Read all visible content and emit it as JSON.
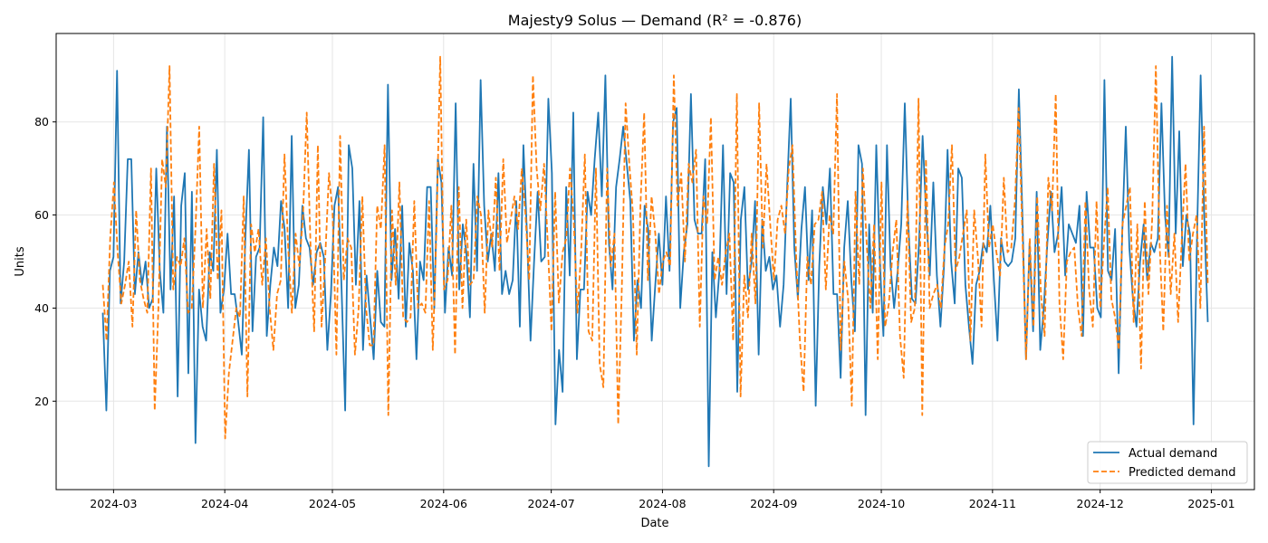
{
  "chart_data": {
    "type": "line",
    "title": "Majesty9 Solus — Demand (R² = -0.876)",
    "xlabel": "Date",
    "ylabel": "Units",
    "x_start": "2024-02-27",
    "x_end": "2024-12-31",
    "xlim": [
      "2024-02-14",
      "2025-01-13"
    ],
    "ylim": [
      1,
      99
    ],
    "x_ticks": [
      "2024-03",
      "2024-04",
      "2024-05",
      "2024-06",
      "2024-07",
      "2024-08",
      "2024-09",
      "2024-10",
      "2024-11",
      "2024-12",
      "2025-01"
    ],
    "y_ticks": [
      20,
      40,
      60,
      80
    ],
    "grid": true,
    "legend_position": "bottom-right",
    "series": [
      {
        "name": "Actual demand",
        "color": "#1f77b4",
        "style": "solid",
        "values": [
          39,
          18,
          48,
          51,
          91,
          41,
          50,
          72,
          72,
          43,
          52,
          45,
          50,
          40,
          42,
          70,
          48,
          39,
          79,
          44,
          64,
          21,
          62,
          69,
          26,
          65,
          11,
          44,
          36,
          33,
          52,
          48,
          74,
          39,
          44,
          56,
          43,
          43,
          37,
          30,
          55,
          74,
          35,
          51,
          53,
          81,
          34,
          45,
          53,
          49,
          63,
          57,
          40,
          77,
          40,
          45,
          62,
          55,
          53,
          45,
          52,
          54,
          51,
          31,
          43,
          62,
          66,
          44,
          18,
          75,
          70,
          45,
          63,
          31,
          47,
          38,
          29,
          48,
          37,
          36,
          88,
          46,
          57,
          42,
          62,
          36,
          54,
          48,
          29,
          50,
          46,
          66,
          66,
          40,
          72,
          67,
          39,
          53,
          47,
          84,
          44,
          58,
          52,
          38,
          71,
          48,
          89,
          62,
          50,
          56,
          48,
          69,
          43,
          48,
          43,
          46,
          63,
          36,
          75,
          56,
          33,
          50,
          65,
          50,
          51,
          85,
          69,
          15,
          31,
          22,
          66,
          47,
          82,
          29,
          44,
          44,
          65,
          60,
          72,
          82,
          64,
          90,
          54,
          44,
          66,
          72,
          79,
          71,
          63,
          33,
          46,
          40,
          62,
          57,
          33,
          45,
          56,
          45,
          64,
          48,
          80,
          83,
          40,
          52,
          58,
          86,
          59,
          56,
          56,
          72,
          6,
          52,
          38,
          48,
          75,
          43,
          69,
          67,
          22,
          59,
          66,
          44,
          50,
          63,
          30,
          59,
          48,
          51,
          44,
          47,
          36,
          45,
          66,
          85,
          53,
          42,
          57,
          66,
          46,
          61,
          19,
          49,
          66,
          58,
          70,
          43,
          43,
          25,
          53,
          63,
          46,
          35,
          75,
          71,
          17,
          58,
          39,
          75,
          50,
          34,
          75,
          49,
          40,
          48,
          58,
          84,
          58,
          42,
          41,
          54,
          77,
          60,
          47,
          67,
          47,
          36,
          49,
          74,
          50,
          41,
          70,
          68,
          45,
          36,
          28,
          45,
          48,
          54,
          52,
          62,
          46,
          33,
          55,
          50,
          49,
          50,
          55,
          87,
          60,
          29,
          54,
          35,
          65,
          31,
          40,
          54,
          65,
          52,
          56,
          66,
          47,
          58,
          56,
          54,
          62,
          34,
          65,
          53,
          53,
          40,
          38,
          89,
          48,
          46,
          57,
          26,
          56,
          79,
          53,
          42,
          36,
          50,
          58,
          46,
          54,
          52,
          55,
          84,
          60,
          51,
          94,
          56,
          78,
          49,
          60,
          56,
          15,
          56,
          90,
          60,
          37
        ]
      },
      {
        "name": "Predicted demand",
        "color": "#ff7f0e",
        "style": "dashed",
        "values": [
          45,
          33,
          55,
          67,
          52,
          41,
          45,
          50,
          36,
          61,
          46,
          42,
          39,
          70,
          18,
          40,
          72,
          66,
          92,
          44,
          51,
          49,
          55,
          39,
          40,
          57,
          79,
          40,
          57,
          42,
          71,
          46,
          61,
          12,
          26,
          33,
          40,
          38,
          64,
          21,
          58,
          52,
          57,
          45,
          55,
          40,
          31,
          43,
          46,
          73,
          53,
          39,
          56,
          49,
          60,
          82,
          54,
          35,
          75,
          36,
          51,
          69,
          60,
          30,
          77,
          46,
          55,
          53,
          30,
          40,
          64,
          40,
          32,
          32,
          62,
          57,
          75,
          17,
          61,
          45,
          67,
          38,
          37,
          38,
          63,
          40,
          41,
          39,
          63,
          31,
          57,
          94,
          44,
          46,
          62,
          30,
          66,
          40,
          59,
          45,
          46,
          64,
          60,
          39,
          61,
          53,
          68,
          48,
          72,
          54,
          59,
          64,
          57,
          70,
          60,
          46,
          90,
          70,
          61,
          71,
          54,
          35,
          65,
          41,
          52,
          55,
          70,
          59,
          39,
          52,
          73,
          35,
          33,
          70,
          28,
          23,
          70,
          49,
          56,
          15,
          45,
          84,
          71,
          60,
          30,
          62,
          82,
          46,
          64,
          56,
          43,
          50,
          52,
          49,
          90,
          62,
          69,
          50,
          71,
          67,
          74,
          36,
          64,
          58,
          81,
          46,
          51,
          45,
          52,
          56,
          33,
          86,
          21,
          47,
          38,
          56,
          41,
          84,
          53,
          71,
          58,
          46,
          59,
          62,
          56,
          70,
          75,
          51,
          33,
          22,
          51,
          45,
          58,
          59,
          65,
          44,
          60,
          56,
          86,
          31,
          50,
          42,
          19,
          65,
          45,
          70,
          54,
          40,
          58,
          29,
          67,
          36,
          41,
          52,
          59,
          34,
          25,
          63,
          37,
          40,
          85,
          17,
          72,
          40,
          43,
          45,
          40,
          53,
          58,
          75,
          48,
          51,
          56,
          61,
          33,
          61,
          51,
          36,
          73,
          53,
          58,
          52,
          47,
          68,
          52,
          53,
          63,
          83,
          56,
          29,
          55,
          36,
          64,
          43,
          34,
          68,
          61,
          86,
          41,
          29,
          50,
          52,
          53,
          40,
          34,
          63,
          44,
          36,
          63,
          40,
          54,
          66,
          42,
          38,
          31,
          58,
          62,
          66,
          37,
          58,
          27,
          63,
          43,
          59,
          92,
          54,
          35,
          62,
          43,
          56,
          37,
          55,
          71,
          50,
          56,
          60,
          40,
          79,
          45
        ]
      }
    ]
  },
  "legend": {
    "items": [
      "Actual demand",
      "Predicted demand"
    ]
  }
}
